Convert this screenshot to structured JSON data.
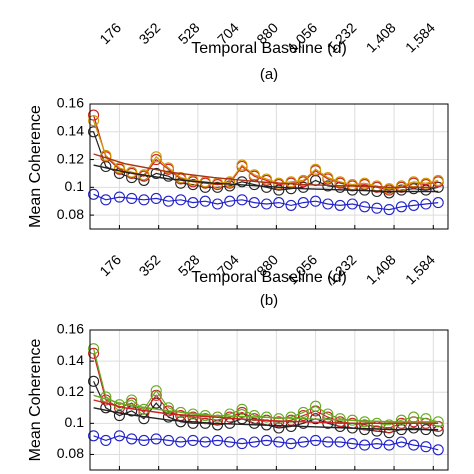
{
  "chart_data": [
    {
      "type": "line",
      "panel_label": "(a)",
      "xlabel": "Temporal Baseline (d)",
      "x_ticks": [
        176,
        352,
        528,
        704,
        880,
        1056,
        1232,
        1408,
        1584
      ],
      "x_tick_labels": [
        "176",
        "352",
        "528",
        "704",
        "880",
        "1,056",
        "1,232",
        "1,408",
        "1,584"
      ],
      "xlim": [
        44,
        1650
      ],
      "series": []
    },
    {
      "type": "line",
      "panel_label": "(b)",
      "xlabel": "Temporal Baseline (d)",
      "ylabel": "Mean Coherence",
      "xlim": [
        44,
        1650
      ],
      "ylim": [
        0.07,
        0.16
      ],
      "y_ticks": [
        0.08,
        0.1,
        0.12,
        0.14,
        0.16
      ],
      "y_tick_labels": [
        "0.08",
        "0.1",
        "0.12",
        "0.14",
        "0.16"
      ],
      "x_ticks": [
        176,
        352,
        528,
        704,
        880,
        1056,
        1232,
        1408,
        1584
      ],
      "x_tick_labels": [
        "176",
        "352",
        "528",
        "704",
        "880",
        "1,056",
        "1,232",
        "1,408",
        "1,584"
      ],
      "grid": true,
      "series": [
        {
          "color": "#2222cc",
          "x": [
            60,
            115,
            176,
            231,
            286,
            341,
            396,
            451,
            506,
            561,
            616,
            671,
            726,
            781,
            836,
            891,
            946,
            1001,
            1056,
            1111,
            1166,
            1221,
            1276,
            1331,
            1386,
            1441,
            1496,
            1551,
            1606
          ],
          "y": [
            0.095,
            0.091,
            0.093,
            0.092,
            0.091,
            0.092,
            0.09,
            0.091,
            0.089,
            0.09,
            0.088,
            0.09,
            0.091,
            0.089,
            0.088,
            0.089,
            0.087,
            0.089,
            0.09,
            0.088,
            0.087,
            0.088,
            0.086,
            0.085,
            0.084,
            0.086,
            0.087,
            0.088,
            0.089
          ]
        },
        {
          "color": "#222222",
          "x": [
            60,
            115,
            176,
            231,
            286,
            341,
            396,
            451,
            506,
            561,
            616,
            671,
            726,
            781,
            836,
            891,
            946,
            1001,
            1056,
            1111,
            1166,
            1221,
            1276,
            1331,
            1386,
            1441,
            1496,
            1551,
            1606
          ],
          "y": [
            0.14,
            0.115,
            0.11,
            0.107,
            0.105,
            0.11,
            0.108,
            0.103,
            0.102,
            0.1,
            0.1,
            0.101,
            0.104,
            0.102,
            0.1,
            0.098,
            0.099,
            0.1,
            0.105,
            0.101,
            0.1,
            0.098,
            0.098,
            0.097,
            0.096,
            0.098,
            0.099,
            0.098,
            0.1
          ]
        },
        {
          "color": "#cc2222",
          "x": [
            60,
            115,
            176,
            231,
            286,
            341,
            396,
            451,
            506,
            561,
            616,
            671,
            726,
            781,
            836,
            891,
            946,
            1001,
            1056,
            1111,
            1166,
            1221,
            1276,
            1331,
            1386,
            1441,
            1496,
            1551,
            1606
          ],
          "y": [
            0.152,
            0.122,
            0.113,
            0.11,
            0.108,
            0.12,
            0.113,
            0.106,
            0.104,
            0.103,
            0.102,
            0.103,
            0.115,
            0.108,
            0.105,
            0.102,
            0.103,
            0.104,
            0.112,
            0.106,
            0.103,
            0.101,
            0.102,
            0.1,
            0.098,
            0.1,
            0.103,
            0.102,
            0.104
          ]
        },
        {
          "color": "#cc9900",
          "x": [
            60,
            115,
            176,
            231,
            286,
            341,
            396,
            451,
            506,
            561,
            616,
            671,
            726,
            781,
            836,
            891,
            946,
            1001,
            1056,
            1111,
            1166,
            1221,
            1276,
            1331,
            1386,
            1441,
            1496,
            1551,
            1606
          ],
          "y": [
            0.148,
            0.123,
            0.114,
            0.111,
            0.109,
            0.122,
            0.114,
            0.107,
            0.105,
            0.104,
            0.103,
            0.104,
            0.116,
            0.109,
            0.106,
            0.103,
            0.104,
            0.105,
            0.113,
            0.107,
            0.104,
            0.102,
            0.103,
            0.101,
            0.099,
            0.101,
            0.104,
            0.103,
            0.105
          ]
        }
      ],
      "trend_lines": [
        {
          "color": "#222222",
          "x": [
            60,
            200,
            400,
            600,
            800,
            1000,
            1200,
            1400,
            1606
          ],
          "y": [
            0.116,
            0.111,
            0.106,
            0.103,
            0.101,
            0.099,
            0.098,
            0.097,
            0.097
          ]
        },
        {
          "color": "#aa3311",
          "x": [
            60,
            200,
            400,
            600,
            800,
            1000,
            1200,
            1400,
            1606
          ],
          "y": [
            0.124,
            0.117,
            0.111,
            0.107,
            0.104,
            0.102,
            0.101,
            0.1,
            0.1
          ]
        }
      ]
    },
    {
      "type": "line",
      "ylabel": "Mean Coherence",
      "xlim": [
        44,
        1650
      ],
      "ylim": [
        0.07,
        0.16
      ],
      "y_ticks": [
        0.08,
        0.1,
        0.12,
        0.14,
        0.16
      ],
      "y_tick_labels": [
        "0.08",
        "0.1",
        "0.12",
        "0.14",
        "0.16"
      ],
      "grid": true,
      "series": [
        {
          "color": "#2222cc",
          "x": [
            60,
            115,
            176,
            231,
            286,
            341,
            396,
            451,
            506,
            561,
            616,
            671,
            726,
            781,
            836,
            891,
            946,
            1001,
            1056,
            1111,
            1166,
            1221,
            1276,
            1331,
            1386,
            1441,
            1496,
            1551,
            1606
          ],
          "y": [
            0.092,
            0.089,
            0.092,
            0.09,
            0.089,
            0.09,
            0.089,
            0.088,
            0.089,
            0.088,
            0.089,
            0.088,
            0.087,
            0.088,
            0.089,
            0.088,
            0.087,
            0.088,
            0.089,
            0.088,
            0.088,
            0.087,
            0.086,
            0.087,
            0.086,
            0.088,
            0.086,
            0.085,
            0.083
          ]
        },
        {
          "color": "#222222",
          "x": [
            60,
            115,
            176,
            231,
            286,
            341,
            396,
            451,
            506,
            561,
            616,
            671,
            726,
            781,
            836,
            891,
            946,
            1001,
            1056,
            1111,
            1166,
            1221,
            1276,
            1331,
            1386,
            1441,
            1496,
            1551,
            1606
          ],
          "y": [
            0.127,
            0.11,
            0.105,
            0.108,
            0.103,
            0.113,
            0.104,
            0.101,
            0.1,
            0.1,
            0.099,
            0.1,
            0.103,
            0.1,
            0.099,
            0.097,
            0.098,
            0.1,
            0.103,
            0.1,
            0.098,
            0.097,
            0.096,
            0.095,
            0.094,
            0.096,
            0.097,
            0.096,
            0.095
          ]
        },
        {
          "color": "#cc2222",
          "x": [
            60,
            115,
            176,
            231,
            286,
            341,
            396,
            451,
            506,
            561,
            616,
            671,
            726,
            781,
            836,
            891,
            946,
            1001,
            1056,
            1111,
            1166,
            1221,
            1276,
            1331,
            1386,
            1441,
            1496,
            1551,
            1606
          ],
          "y": [
            0.145,
            0.115,
            0.11,
            0.113,
            0.107,
            0.118,
            0.108,
            0.105,
            0.104,
            0.103,
            0.102,
            0.104,
            0.107,
            0.103,
            0.102,
            0.101,
            0.102,
            0.105,
            0.108,
            0.104,
            0.101,
            0.1,
            0.099,
            0.098,
            0.097,
            0.1,
            0.101,
            0.1,
            0.098
          ]
        },
        {
          "color": "#66aa22",
          "x": [
            60,
            115,
            176,
            231,
            286,
            341,
            396,
            451,
            506,
            561,
            616,
            671,
            726,
            781,
            836,
            891,
            946,
            1001,
            1056,
            1111,
            1166,
            1221,
            1276,
            1331,
            1386,
            1441,
            1496,
            1551,
            1606
          ],
          "y": [
            0.148,
            0.117,
            0.112,
            0.115,
            0.109,
            0.121,
            0.11,
            0.107,
            0.106,
            0.105,
            0.104,
            0.106,
            0.109,
            0.105,
            0.104,
            0.103,
            0.104,
            0.107,
            0.111,
            0.106,
            0.103,
            0.102,
            0.101,
            0.1,
            0.099,
            0.102,
            0.104,
            0.103,
            0.101
          ]
        }
      ],
      "trend_lines": [
        {
          "color": "#222222",
          "x": [
            60,
            200,
            400,
            600,
            800,
            1000,
            1200,
            1400,
            1606
          ],
          "y": [
            0.11,
            0.106,
            0.102,
            0.1,
            0.099,
            0.098,
            0.097,
            0.096,
            0.096
          ]
        },
        {
          "color": "#cc2222",
          "x": [
            60,
            200,
            400,
            600,
            800,
            1000,
            1200,
            1400,
            1606
          ],
          "y": [
            0.115,
            0.11,
            0.106,
            0.104,
            0.102,
            0.101,
            0.1,
            0.1,
            0.1
          ]
        },
        {
          "color": "#66aa22",
          "x": [
            60,
            200,
            400,
            600,
            800,
            1000,
            1200,
            1400,
            1606
          ],
          "y": [
            0.118,
            0.112,
            0.108,
            0.105,
            0.104,
            0.103,
            0.102,
            0.101,
            0.101
          ]
        }
      ]
    }
  ]
}
